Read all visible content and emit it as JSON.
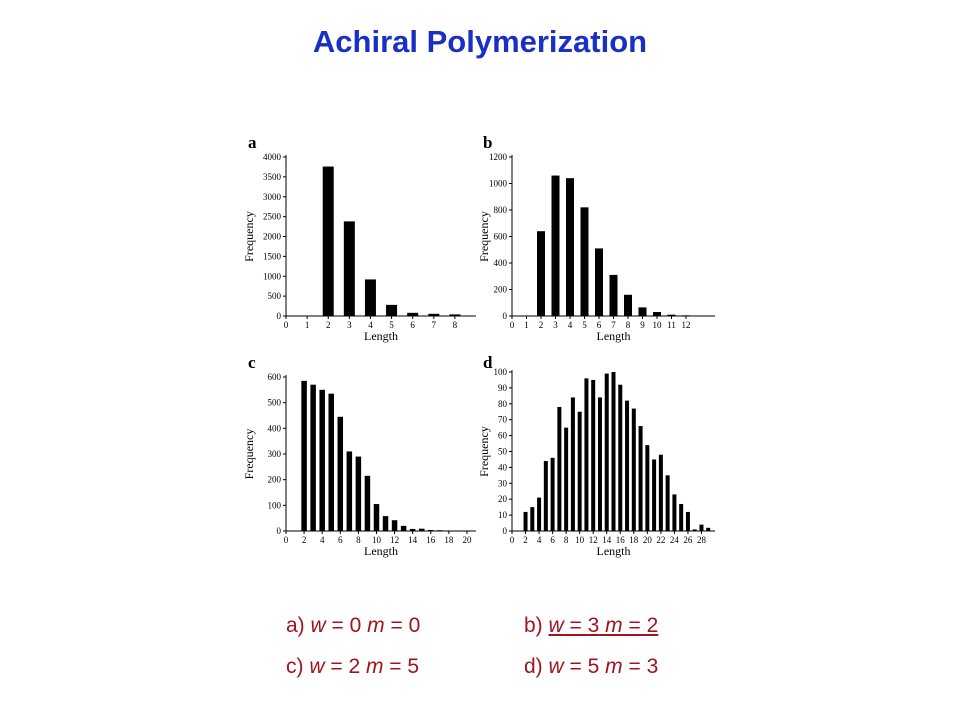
{
  "title": "Achiral Polymerization",
  "colors": {
    "title": "#1a2fc4",
    "caption": "#a0141e",
    "bars": "#000000"
  },
  "chart_data": [
    {
      "type": "bar",
      "panel_label": "a",
      "xlabel": "Length",
      "ylabel": "Frequency",
      "x": [
        0,
        1,
        2,
        3,
        4,
        5,
        6,
        7,
        8
      ],
      "values": [
        0,
        0,
        3760,
        2380,
        920,
        280,
        80,
        55,
        40
      ],
      "ylim": [
        0,
        4000
      ],
      "yticks": [
        0,
        500,
        1000,
        1500,
        2000,
        2500,
        3000,
        3500,
        4000
      ],
      "xticks": [
        0,
        1,
        2,
        3,
        4,
        5,
        6,
        7,
        8
      ],
      "xlim": [
        0,
        9
      ]
    },
    {
      "type": "bar",
      "panel_label": "b",
      "xlabel": "Length",
      "ylabel": "Frequency",
      "x": [
        0,
        1,
        2,
        3,
        4,
        5,
        6,
        7,
        8,
        9,
        10,
        11,
        12
      ],
      "values": [
        0,
        0,
        640,
        1060,
        1040,
        820,
        510,
        310,
        160,
        65,
        30,
        10,
        5
      ],
      "ylim": [
        0,
        1200
      ],
      "yticks": [
        0,
        200,
        400,
        600,
        800,
        1000,
        1200
      ],
      "xticks": [
        0,
        1,
        2,
        3,
        4,
        5,
        6,
        7,
        8,
        9,
        10,
        11,
        12
      ],
      "xlim": [
        0,
        14
      ]
    },
    {
      "type": "bar",
      "panel_label": "c",
      "xlabel": "Length",
      "ylabel": "Frequency",
      "x": [
        2,
        3,
        4,
        5,
        6,
        7,
        8,
        9,
        10,
        11,
        12,
        13,
        14,
        15,
        16,
        17,
        18,
        19,
        20
      ],
      "values": [
        585,
        570,
        550,
        535,
        445,
        310,
        290,
        215,
        105,
        58,
        42,
        20,
        8,
        9,
        4,
        3,
        1,
        1,
        1
      ],
      "ylim": [
        0,
        600
      ],
      "yticks": [
        0,
        100,
        200,
        300,
        400,
        500,
        600
      ],
      "xticks": [
        0,
        2,
        4,
        6,
        8,
        10,
        12,
        14,
        16,
        18,
        20
      ],
      "xlim": [
        0,
        21
      ]
    },
    {
      "type": "bar",
      "panel_label": "d",
      "xlabel": "Length",
      "ylabel": "Frequency",
      "x": [
        2,
        3,
        4,
        5,
        6,
        7,
        8,
        9,
        10,
        11,
        12,
        13,
        14,
        15,
        16,
        17,
        18,
        19,
        20,
        21,
        22,
        23,
        24,
        25,
        26,
        27,
        28,
        29
      ],
      "values": [
        12,
        15,
        21,
        44,
        46,
        78,
        65,
        84,
        75,
        96,
        95,
        84,
        99,
        100,
        92,
        82,
        77,
        66,
        54,
        45,
        48,
        35,
        23,
        17,
        12,
        1,
        4,
        2
      ],
      "ylim": [
        0,
        100
      ],
      "yticks": [
        0,
        10,
        20,
        30,
        40,
        50,
        60,
        70,
        80,
        90,
        100
      ],
      "xticks": [
        0,
        2,
        4,
        6,
        8,
        10,
        12,
        14,
        16,
        18,
        20,
        22,
        24,
        26,
        28
      ],
      "xlim": [
        0,
        30
      ]
    }
  ],
  "captions": [
    {
      "prefix": "a) ",
      "w": "0",
      "m": "0"
    },
    {
      "prefix": "b) ",
      "w": "3",
      "m": "2"
    },
    {
      "prefix": "c) ",
      "w": "2",
      "m": "5"
    },
    {
      "prefix": "d) ",
      "w": "5",
      "m": "3"
    }
  ],
  "caption_vars": {
    "w": "w",
    "m": "m",
    "eq": " = "
  }
}
